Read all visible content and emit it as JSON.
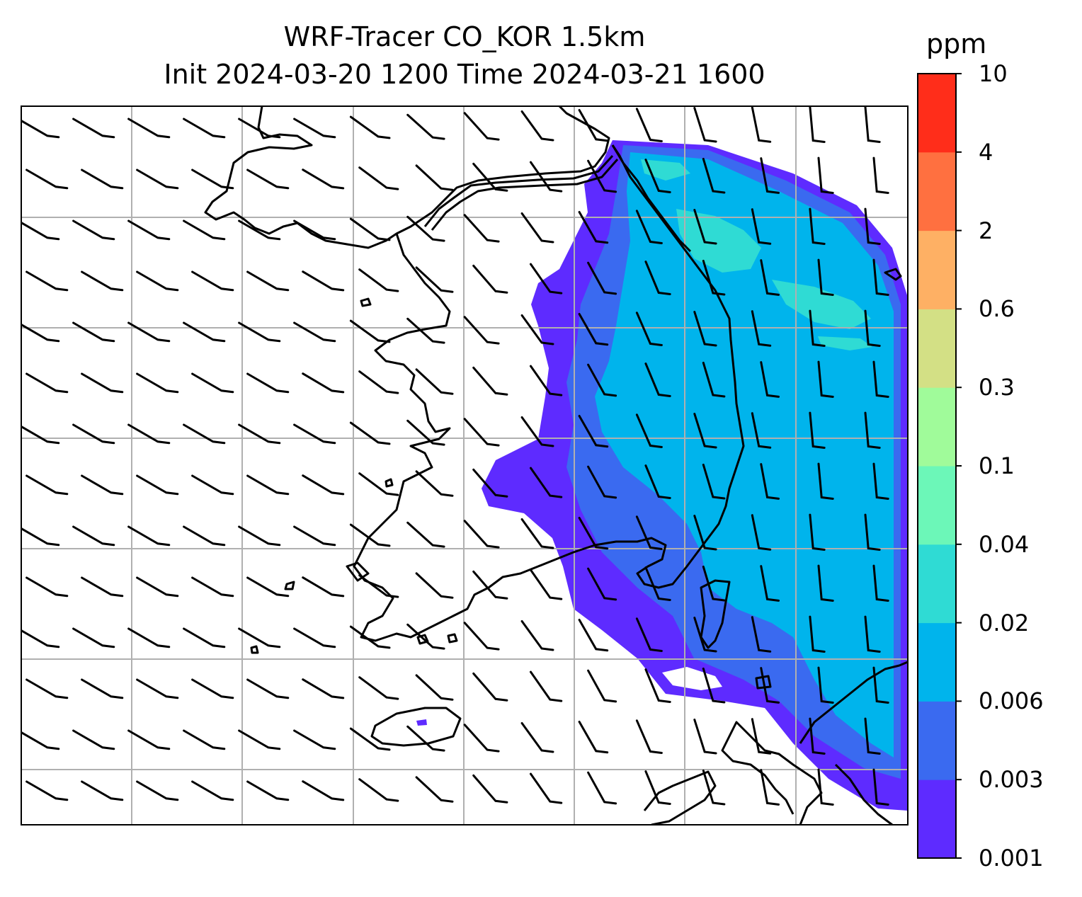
{
  "title": {
    "line1": "WRF-Tracer CO_KOR 1.5km",
    "line2": "Init 2024-03-20 1200 Time 2024-03-21 1600"
  },
  "colorbar": {
    "unit": "ppm",
    "levels": [
      "0.001",
      "0.003",
      "0.006",
      "0.02",
      "0.04",
      "0.1",
      "0.3",
      "0.6",
      "2",
      "4",
      "10"
    ],
    "colors": [
      "#5e2bff",
      "#3a6af0",
      "#00b4ec",
      "#2fdbd4",
      "#6cf7b8",
      "#a0fb9a",
      "#d3e085",
      "#feb064",
      "#ff7040",
      "#ff2d1a"
    ]
  },
  "map": {
    "field": "CO tracer concentration",
    "gridlines": true,
    "wind_barbs": true,
    "coastline_color": "#000000",
    "gridline_color": "#b0b0b0"
  }
}
